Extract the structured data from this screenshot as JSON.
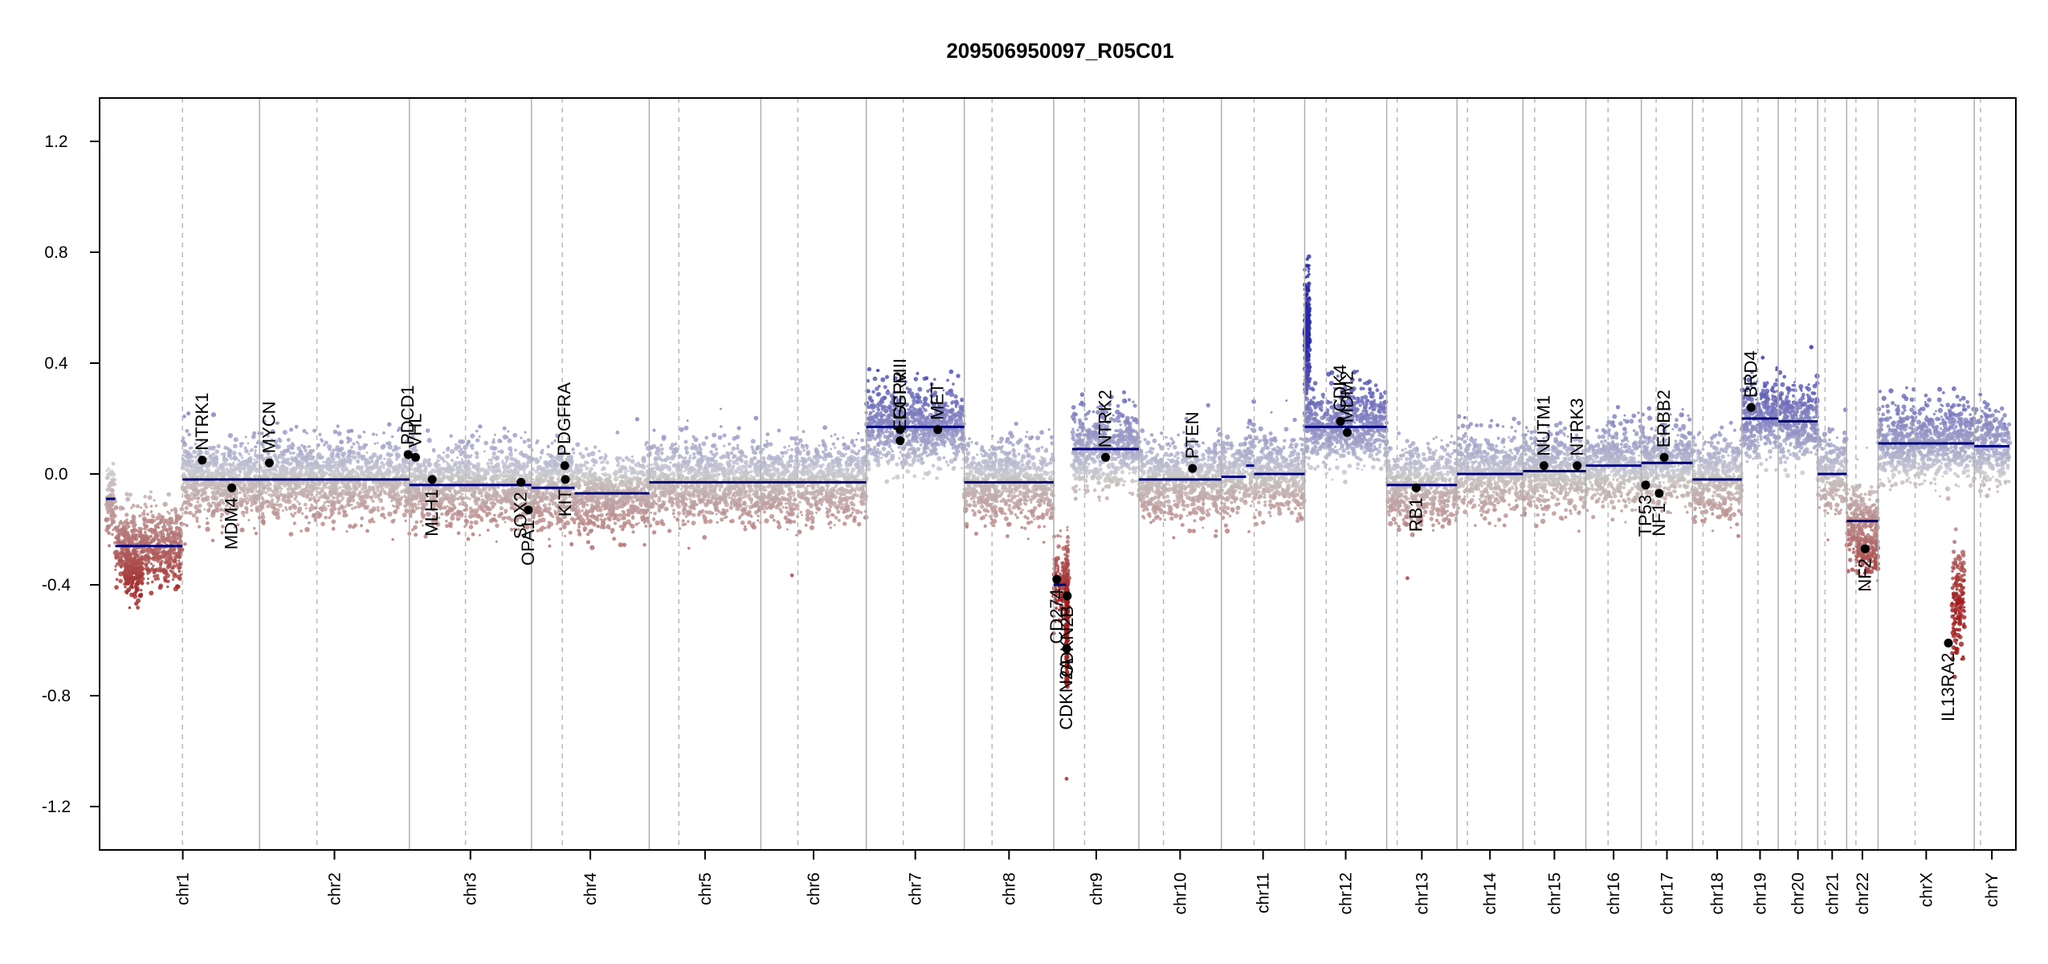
{
  "chart_data": {
    "type": "scatter",
    "title": "209506950097_R05C01",
    "xlabel": "",
    "ylabel": "",
    "ylim": [
      -1.35,
      1.35
    ],
    "y_ticks": [
      -1.2,
      -0.8,
      -0.4,
      0.0,
      0.4,
      0.8,
      1.2
    ],
    "y_tick_labels": [
      "-1.2",
      "-0.8",
      "-0.4",
      "0.0",
      "0.4",
      "0.8",
      "1.2"
    ],
    "grid": false,
    "colors": {
      "gain": "#1b1b8f",
      "neutral": "#c8c8c8",
      "loss": "#a01e1e",
      "segment": "#00007a",
      "boundary_line": "#b0b0b0",
      "centromere_line": "#b8b8b8"
    },
    "chromosomes": [
      {
        "name": "chr1",
        "len": 249,
        "cen": 124,
        "label": "chr1"
      },
      {
        "name": "chr2",
        "len": 243,
        "cen": 93,
        "label": "chr2"
      },
      {
        "name": "chr3",
        "len": 198,
        "cen": 91,
        "label": "chr3"
      },
      {
        "name": "chr4",
        "len": 191,
        "cen": 50,
        "label": "chr4"
      },
      {
        "name": "chr5",
        "len": 181,
        "cen": 48,
        "label": "chr5"
      },
      {
        "name": "chr6",
        "len": 171,
        "cen": 60,
        "label": "chr6"
      },
      {
        "name": "chr7",
        "len": 159,
        "cen": 60,
        "label": "chr7"
      },
      {
        "name": "chr8",
        "len": 145,
        "cen": 45,
        "label": "chr8"
      },
      {
        "name": "chr9",
        "len": 138,
        "cen": 50,
        "label": "chr9"
      },
      {
        "name": "chr10",
        "len": 134,
        "cen": 40,
        "label": "chr10"
      },
      {
        "name": "chr11",
        "len": 135,
        "cen": 53,
        "label": "chr11"
      },
      {
        "name": "chr12",
        "len": 133,
        "cen": 35,
        "label": "chr12"
      },
      {
        "name": "chr13",
        "len": 114,
        "cen": 17,
        "label": "chr13"
      },
      {
        "name": "chr14",
        "len": 107,
        "cen": 17,
        "label": "chr14"
      },
      {
        "name": "chr15",
        "len": 102,
        "cen": 19,
        "label": "chr15"
      },
      {
        "name": "chr16",
        "len": 90,
        "cen": 36,
        "label": "chr16"
      },
      {
        "name": "chr17",
        "len": 83,
        "cen": 24,
        "label": "chr17"
      },
      {
        "name": "chr18",
        "len": 80,
        "cen": 17,
        "label": "chr18"
      },
      {
        "name": "chr19",
        "len": 59,
        "cen": 26,
        "label": "chr19"
      },
      {
        "name": "chr20",
        "len": 64,
        "cen": 28,
        "label": "chr20"
      },
      {
        "name": "chr21",
        "len": 47,
        "cen": 12,
        "label": "chr21"
      },
      {
        "name": "chr22",
        "len": 51,
        "cen": 15,
        "label": "chr22"
      },
      {
        "name": "chrX",
        "len": 156,
        "cen": 60,
        "label": "chrX"
      },
      {
        "name": "chrY",
        "len": 57,
        "cen": 10,
        "label": "chrY"
      }
    ],
    "segments": [
      {
        "chr": "chr1",
        "start": 0,
        "end": 15,
        "value": -0.09
      },
      {
        "chr": "chr1",
        "start": 15,
        "end": 124,
        "value": -0.26
      },
      {
        "chr": "chr1",
        "start": 124,
        "end": 249,
        "value": -0.02
      },
      {
        "chr": "chr2",
        "start": 0,
        "end": 243,
        "value": -0.02
      },
      {
        "chr": "chr3",
        "start": 0,
        "end": 198,
        "value": -0.04
      },
      {
        "chr": "chr4",
        "start": 0,
        "end": 70,
        "value": -0.05
      },
      {
        "chr": "chr4",
        "start": 70,
        "end": 191,
        "value": -0.07
      },
      {
        "chr": "chr5",
        "start": 0,
        "end": 181,
        "value": -0.03
      },
      {
        "chr": "chr6",
        "start": 0,
        "end": 171,
        "value": -0.03
      },
      {
        "chr": "chr7",
        "start": 0,
        "end": 159,
        "value": 0.17
      },
      {
        "chr": "chr8",
        "start": 0,
        "end": 145,
        "value": -0.03
      },
      {
        "chr": "chr9",
        "start": 0,
        "end": 20,
        "value": -0.4
      },
      {
        "chr": "chr9",
        "start": 20,
        "end": 25,
        "value": -0.45
      },
      {
        "chr": "chr9",
        "start": 30,
        "end": 138,
        "value": 0.09
      },
      {
        "chr": "chr10",
        "start": 0,
        "end": 134,
        "value": -0.02
      },
      {
        "chr": "chr11",
        "start": 0,
        "end": 40,
        "value": -0.01
      },
      {
        "chr": "chr11",
        "start": 40,
        "end": 53,
        "value": 0.03
      },
      {
        "chr": "chr11",
        "start": 53,
        "end": 135,
        "value": 0.0
      },
      {
        "chr": "chr12",
        "start": 0,
        "end": 133,
        "value": 0.17
      },
      {
        "chr": "chr13",
        "start": 0,
        "end": 114,
        "value": -0.04
      },
      {
        "chr": "chr14",
        "start": 0,
        "end": 107,
        "value": 0.0
      },
      {
        "chr": "chr15",
        "start": 0,
        "end": 102,
        "value": 0.01
      },
      {
        "chr": "chr16",
        "start": 0,
        "end": 90,
        "value": 0.03
      },
      {
        "chr": "chr17",
        "start": 0,
        "end": 83,
        "value": 0.04
      },
      {
        "chr": "chr18",
        "start": 0,
        "end": 80,
        "value": -0.02
      },
      {
        "chr": "chr19",
        "start": 0,
        "end": 59,
        "value": 0.2
      },
      {
        "chr": "chr20",
        "start": 0,
        "end": 64,
        "value": 0.19
      },
      {
        "chr": "chr21",
        "start": 0,
        "end": 47,
        "value": 0.0
      },
      {
        "chr": "chr22",
        "start": 0,
        "end": 51,
        "value": -0.17
      },
      {
        "chr": "chrX",
        "start": 0,
        "end": 72,
        "value": 0.11
      },
      {
        "chr": "chrX",
        "start": 72,
        "end": 156,
        "value": 0.11
      },
      {
        "chr": "chrY",
        "start": 0,
        "end": 57,
        "value": 0.1
      }
    ],
    "focal_features": [
      {
        "chr": "chr9",
        "start": 20,
        "end": 23,
        "value": -0.5,
        "spread": 0.25,
        "n": 240
      },
      {
        "chr": "chr12",
        "start": 0,
        "end": 8,
        "value": 0.5,
        "spread": 0.2,
        "n": 300
      },
      {
        "chr": "chr1",
        "start": 30,
        "end": 60,
        "value": -0.35,
        "spread": 0.1,
        "n": 200
      },
      {
        "chr": "chr22",
        "start": 15,
        "end": 51,
        "value": -0.3,
        "spread": 0.08,
        "n": 120
      },
      {
        "chr": "chrX",
        "start": 120,
        "end": 140,
        "value": -0.45,
        "spread": 0.2,
        "n": 150
      }
    ],
    "genes": [
      {
        "name": "NTRK1",
        "chr": "chr1",
        "pos": 156,
        "value": 0.05
      },
      {
        "name": "MDM4",
        "chr": "chr1",
        "pos": 204,
        "value": -0.05
      },
      {
        "name": "MYCN",
        "chr": "chr2",
        "pos": 16,
        "value": 0.04
      },
      {
        "name": "PDCD1",
        "chr": "chr2",
        "pos": 241,
        "value": 0.07
      },
      {
        "name": "VHL",
        "chr": "chr3",
        "pos": 10,
        "value": 0.06
      },
      {
        "name": "MLH1",
        "chr": "chr3",
        "pos": 37,
        "value": -0.02
      },
      {
        "name": "SOX2",
        "chr": "chr3",
        "pos": 181,
        "value": -0.03
      },
      {
        "name": "OPA1",
        "chr": "chr3",
        "pos": 193,
        "value": -0.13
      },
      {
        "name": "KIT",
        "chr": "chr4",
        "pos": 55,
        "value": -0.02
      },
      {
        "name": "PDGFRA",
        "chr": "chr4",
        "pos": 54,
        "value": 0.03
      },
      {
        "name": "EGFR",
        "chr": "chr7",
        "pos": 55,
        "value": 0.16
      },
      {
        "name": "EGFRvIII",
        "chr": "chr7",
        "pos": 55,
        "value": 0.12
      },
      {
        "name": "MET",
        "chr": "chr7",
        "pos": 116,
        "value": 0.16
      },
      {
        "name": "CDKN2A",
        "chr": "chr9",
        "pos": 21,
        "value": -0.63
      },
      {
        "name": "CDKN2B",
        "chr": "chr9",
        "pos": 22,
        "value": -0.44
      },
      {
        "name": "CD274",
        "chr": "chr9",
        "pos": 5,
        "value": -0.38
      },
      {
        "name": "NTRK2",
        "chr": "chr9",
        "pos": 84,
        "value": 0.06
      },
      {
        "name": "PTEN",
        "chr": "chr10",
        "pos": 87,
        "value": 0.02
      },
      {
        "name": "CDK4",
        "chr": "chr12",
        "pos": 58,
        "value": 0.19
      },
      {
        "name": "MDM2",
        "chr": "chr12",
        "pos": 69,
        "value": 0.15
      },
      {
        "name": "RB1",
        "chr": "chr13",
        "pos": 48,
        "value": -0.05
      },
      {
        "name": "NUTM1",
        "chr": "chr15",
        "pos": 34,
        "value": 0.03
      },
      {
        "name": "NTRK3",
        "chr": "chr15",
        "pos": 88,
        "value": 0.03
      },
      {
        "name": "TP53",
        "chr": "chr17",
        "pos": 7,
        "value": -0.04
      },
      {
        "name": "NF1",
        "chr": "chr17",
        "pos": 29,
        "value": -0.07
      },
      {
        "name": "ERBB2",
        "chr": "chr17",
        "pos": 37,
        "value": 0.06
      },
      {
        "name": "BRD4",
        "chr": "chr19",
        "pos": 15,
        "value": 0.24
      },
      {
        "name": "NF2",
        "chr": "chr22",
        "pos": 30,
        "value": -0.27
      },
      {
        "name": "IL13RA2",
        "chr": "chrX",
        "pos": 114,
        "value": -0.61
      }
    ]
  }
}
